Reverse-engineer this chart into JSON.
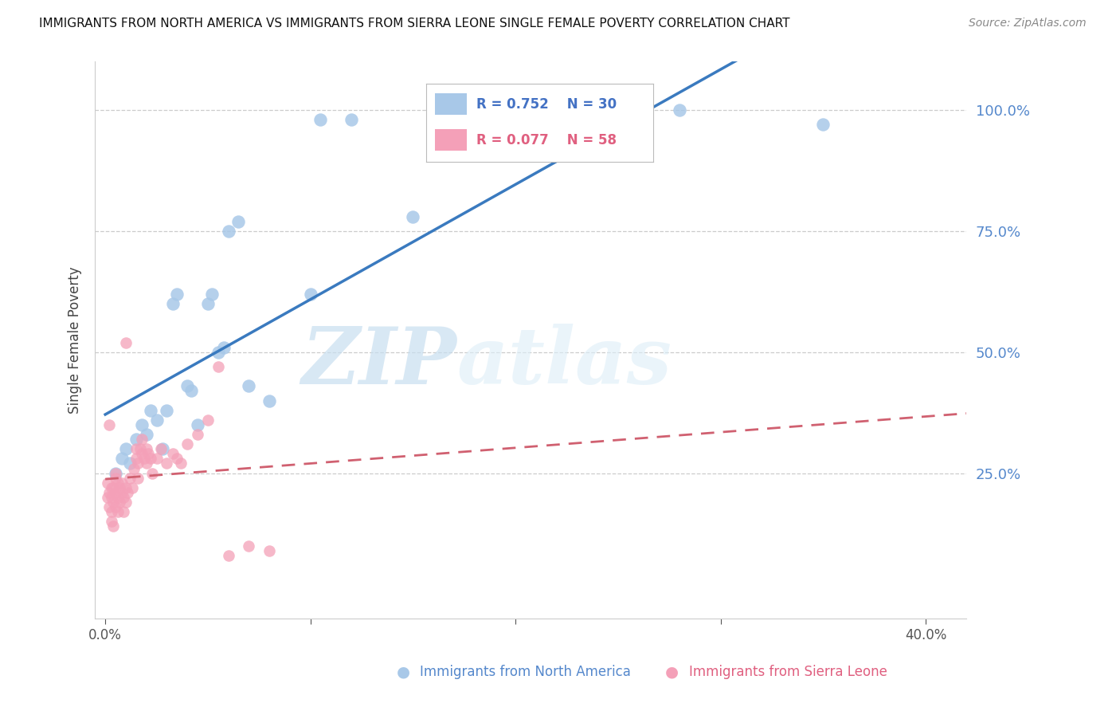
{
  "title": "IMMIGRANTS FROM NORTH AMERICA VS IMMIGRANTS FROM SIERRA LEONE SINGLE FEMALE POVERTY CORRELATION CHART",
  "source": "Source: ZipAtlas.com",
  "ylabel": "Single Female Poverty",
  "blue_color": "#a8c8e8",
  "blue_line_color": "#3a7abf",
  "pink_color": "#f4a0b8",
  "pink_line_color": "#d06070",
  "watermark_zip": "ZIP",
  "watermark_atlas": "atlas",
  "legend_label_blue": "Immigrants from North America",
  "legend_label_pink": "Immigrants from Sierra Leone",
  "legend_blue_R": "R = 0.752",
  "legend_blue_N": "N = 30",
  "legend_pink_R": "R = 0.077",
  "legend_pink_N": "N = 58",
  "blue_x": [
    0.005,
    0.008,
    0.01,
    0.012,
    0.015,
    0.018,
    0.02,
    0.022,
    0.025,
    0.028,
    0.03,
    0.033,
    0.035,
    0.04,
    0.042,
    0.045,
    0.05,
    0.052,
    0.055,
    0.058,
    0.06,
    0.065,
    0.07,
    0.08,
    0.1,
    0.105,
    0.12,
    0.15,
    0.28,
    0.35
  ],
  "blue_y": [
    0.25,
    0.28,
    0.3,
    0.27,
    0.32,
    0.35,
    0.33,
    0.38,
    0.36,
    0.3,
    0.38,
    0.6,
    0.62,
    0.43,
    0.42,
    0.35,
    0.6,
    0.62,
    0.5,
    0.51,
    0.75,
    0.77,
    0.43,
    0.4,
    0.62,
    0.98,
    0.98,
    0.78,
    1.0,
    0.97
  ],
  "pink_x": [
    0.001,
    0.001,
    0.002,
    0.002,
    0.003,
    0.003,
    0.003,
    0.004,
    0.004,
    0.005,
    0.005,
    0.005,
    0.006,
    0.006,
    0.006,
    0.007,
    0.007,
    0.008,
    0.008,
    0.009,
    0.009,
    0.01,
    0.01,
    0.011,
    0.012,
    0.013,
    0.014,
    0.015,
    0.015,
    0.016,
    0.016,
    0.017,
    0.018,
    0.018,
    0.019,
    0.02,
    0.02,
    0.021,
    0.022,
    0.023,
    0.025,
    0.027,
    0.03,
    0.033,
    0.035,
    0.037,
    0.04,
    0.045,
    0.05,
    0.055,
    0.06,
    0.07,
    0.08,
    0.002,
    0.003,
    0.004,
    0.005,
    0.01
  ],
  "pink_y": [
    0.23,
    0.2,
    0.21,
    0.18,
    0.22,
    0.2,
    0.17,
    0.22,
    0.19,
    0.24,
    0.21,
    0.18,
    0.23,
    0.2,
    0.17,
    0.22,
    0.19,
    0.23,
    0.21,
    0.2,
    0.17,
    0.19,
    0.22,
    0.21,
    0.24,
    0.22,
    0.26,
    0.28,
    0.3,
    0.27,
    0.24,
    0.3,
    0.32,
    0.29,
    0.28,
    0.27,
    0.3,
    0.29,
    0.28,
    0.25,
    0.28,
    0.3,
    0.27,
    0.29,
    0.28,
    0.27,
    0.31,
    0.33,
    0.36,
    0.47,
    0.08,
    0.1,
    0.09,
    0.35,
    0.15,
    0.14,
    0.25,
    0.52
  ]
}
